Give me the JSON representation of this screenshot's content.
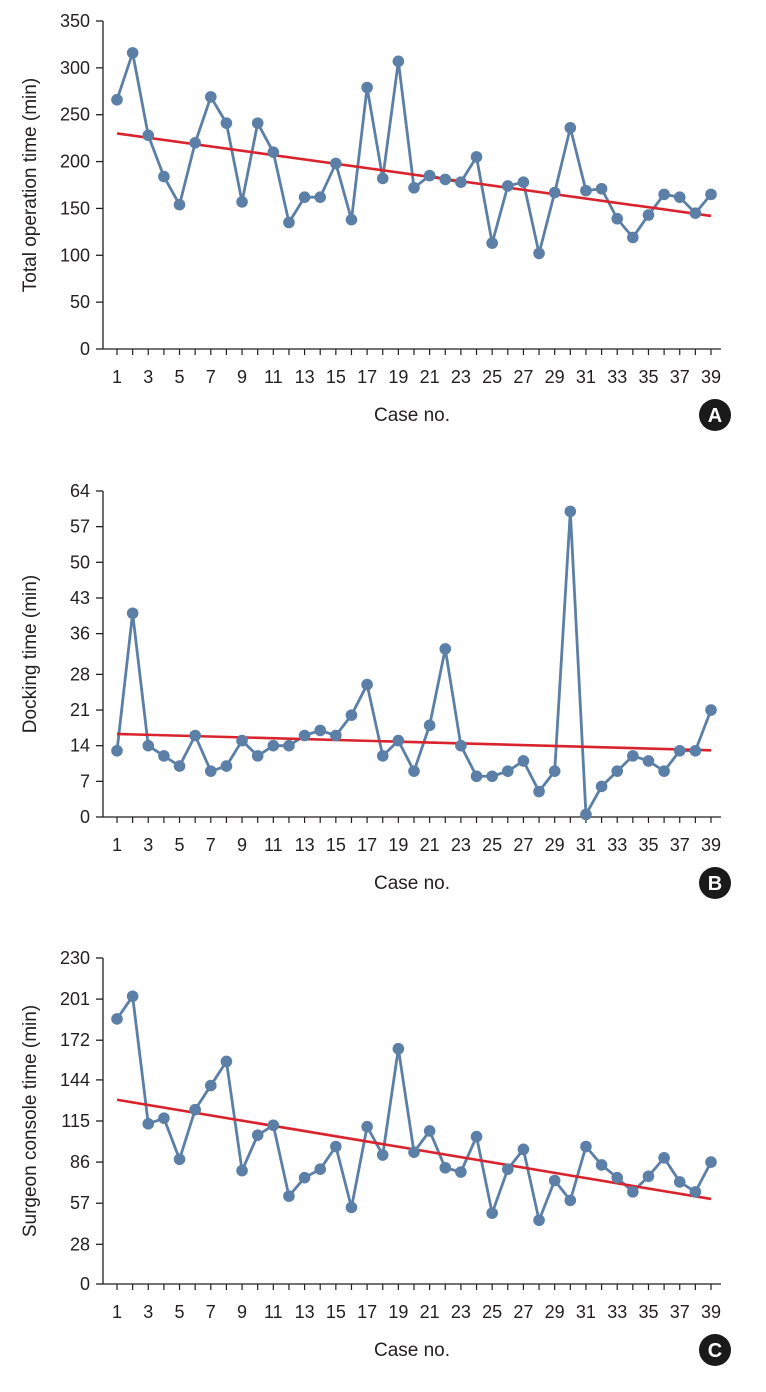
{
  "colors": {
    "series": "#5b7fa6",
    "trend": "#d9232d",
    "axis": "#231f20",
    "badge": "#1a1a1a"
  },
  "chart_data": [
    {
      "type": "line",
      "badge": "A",
      "xlabel": "Case no.",
      "ylabel": "Total operation time (min)",
      "ylim": [
        0,
        350
      ],
      "yticks": [
        0,
        50,
        100,
        150,
        200,
        250,
        300,
        350
      ],
      "xticks": [
        1,
        3,
        5,
        7,
        9,
        11,
        13,
        15,
        17,
        19,
        21,
        23,
        25,
        27,
        29,
        31,
        33,
        35,
        37,
        39
      ],
      "xlim": [
        1,
        39
      ],
      "x": [
        1,
        2,
        3,
        4,
        5,
        6,
        7,
        8,
        9,
        10,
        11,
        12,
        13,
        14,
        15,
        16,
        17,
        18,
        19,
        20,
        21,
        22,
        23,
        24,
        25,
        26,
        27,
        28,
        29,
        30,
        31,
        32,
        33,
        34,
        35,
        36,
        37,
        38,
        39
      ],
      "values": [
        266,
        316,
        228,
        184,
        154,
        220,
        269,
        241,
        157,
        241,
        210,
        135,
        162,
        162,
        198,
        138,
        279,
        182,
        307,
        172,
        185,
        181,
        178,
        205,
        113,
        174,
        178,
        102,
        167,
        236,
        169,
        171,
        139,
        119,
        143,
        165,
        162,
        145,
        165
      ],
      "trend": [
        230,
        142
      ],
      "grid": false,
      "legend": "none"
    },
    {
      "type": "line",
      "badge": "B",
      "xlabel": "Case no.",
      "ylabel": "Docking time (min)",
      "ylim": [
        0,
        64
      ],
      "yticks": [
        0,
        7,
        14,
        21,
        28,
        36,
        43,
        50,
        57,
        64
      ],
      "xticks": [
        1,
        3,
        5,
        7,
        9,
        11,
        13,
        15,
        17,
        19,
        21,
        23,
        25,
        27,
        29,
        31,
        33,
        35,
        37,
        39
      ],
      "xlim": [
        1,
        39
      ],
      "x": [
        1,
        2,
        3,
        4,
        5,
        6,
        7,
        8,
        9,
        10,
        11,
        12,
        13,
        14,
        15,
        16,
        17,
        18,
        19,
        20,
        21,
        22,
        23,
        24,
        25,
        26,
        27,
        28,
        29,
        30,
        31,
        32,
        33,
        34,
        35,
        36,
        37,
        38,
        39
      ],
      "values": [
        13,
        40,
        14,
        12,
        10,
        16,
        9,
        10,
        15,
        12,
        14,
        14,
        16,
        17,
        16,
        20,
        26,
        12,
        15,
        9,
        18,
        33,
        14,
        8,
        8,
        9,
        11,
        5,
        9,
        60,
        0.5,
        6,
        9,
        12,
        11,
        9,
        13,
        13,
        21
      ],
      "trend": [
        16.3,
        13.1
      ],
      "grid": false,
      "legend": "none"
    },
    {
      "type": "line",
      "badge": "C",
      "xlabel": "Case no.",
      "ylabel": "Surgeon console time (min)",
      "ylim": [
        0,
        230
      ],
      "yticks": [
        0,
        28,
        57,
        86,
        115,
        144,
        172,
        201,
        230
      ],
      "xticks": [
        1,
        3,
        5,
        7,
        9,
        11,
        13,
        15,
        17,
        19,
        21,
        23,
        25,
        27,
        29,
        31,
        33,
        35,
        37,
        39
      ],
      "xlim": [
        1,
        39
      ],
      "x": [
        1,
        2,
        3,
        4,
        5,
        6,
        7,
        8,
        9,
        10,
        11,
        12,
        13,
        14,
        15,
        16,
        17,
        18,
        19,
        20,
        21,
        22,
        23,
        24,
        25,
        26,
        27,
        28,
        29,
        30,
        31,
        32,
        33,
        34,
        35,
        36,
        37,
        38,
        39
      ],
      "values": [
        187,
        203,
        113,
        117,
        88,
        123,
        140,
        157,
        80,
        105,
        112,
        62,
        75,
        81,
        97,
        54,
        111,
        91,
        166,
        93,
        108,
        82,
        79,
        104,
        50,
        81,
        95,
        45,
        73,
        59,
        97,
        84,
        75,
        65,
        76,
        89,
        72,
        65,
        86
      ],
      "trend": [
        130,
        60
      ],
      "grid": false,
      "legend": "none"
    }
  ]
}
